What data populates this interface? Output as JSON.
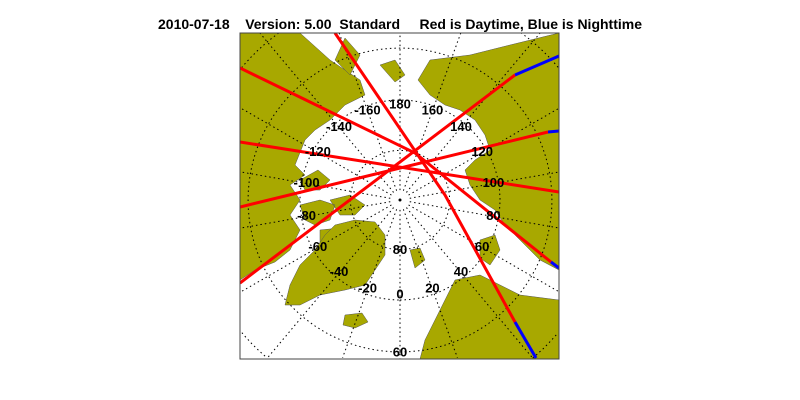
{
  "title": {
    "date": "2010-07-18",
    "version": "Version: 5.00",
    "mode": "Standard",
    "legend": "Red is Daytime, Blue is Nighttime"
  },
  "map": {
    "projection": "north polar stereographic",
    "longitude_labels": [
      "0",
      "20",
      "40",
      "60",
      "80",
      "100",
      "120",
      "140",
      "160",
      "180",
      "-160",
      "-140",
      "-120",
      "-100",
      "-80",
      "-60",
      "-40",
      "-20"
    ],
    "latitude_labels": [
      "80",
      "60"
    ],
    "colors": {
      "land": "#a8a800",
      "ocean": "#ffffff",
      "daytime": "#ff0000",
      "nighttime": "#0000ff",
      "grid": "#000000"
    }
  }
}
